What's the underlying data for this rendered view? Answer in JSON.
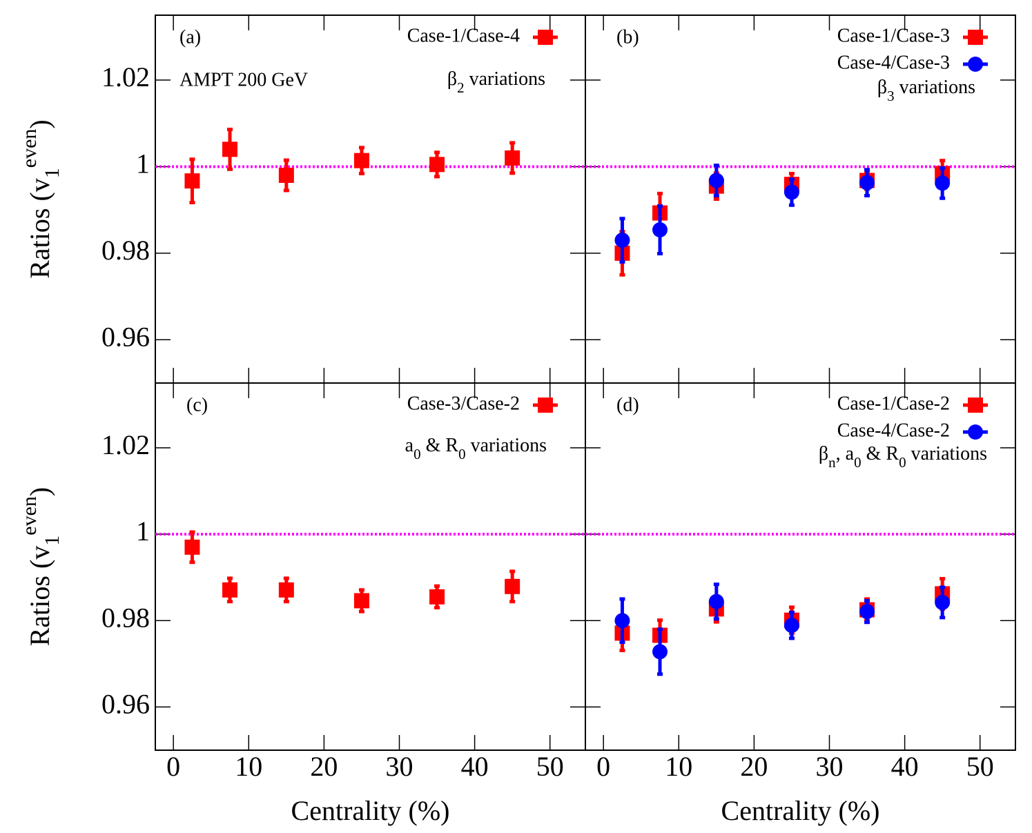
{
  "chart_data": [
    {
      "type": "errorbar",
      "panel_label": "(a)",
      "note": "AMPT 200 GeV",
      "annotation": [
        {
          "text": "β"
        },
        {
          "text": "2",
          "style": "sub"
        },
        {
          "text": " variations"
        }
      ],
      "y_label": [
        {
          "text": "Ratios (v"
        },
        {
          "text": "1",
          "style": "sub"
        },
        {
          "text": "even",
          "style": "sup"
        },
        {
          "text": ")"
        }
      ],
      "xlim": [
        -2.4,
        54.7
      ],
      "xticks": [
        0,
        10,
        20,
        30,
        40,
        50
      ],
      "xticklabels": false,
      "ylim": [
        0.95,
        1.035
      ],
      "yticks": [
        0.96,
        0.98,
        1,
        1.02
      ],
      "yticklabels": true,
      "hline": 1,
      "hline_color": "#ff00ff",
      "series": [
        {
          "name": "Case-1/Case-4",
          "color": "#ff0000",
          "marker": "square",
          "x": [
            2.5,
            7.5,
            15,
            25,
            35,
            45
          ],
          "values": [
            0.9967,
            1.004,
            0.998,
            1.0014,
            1.0005,
            1.002
          ],
          "errors": [
            0.005,
            0.0046,
            0.0035,
            0.003,
            0.0028,
            0.0035
          ]
        }
      ]
    },
    {
      "type": "errorbar",
      "panel_label": "(b)",
      "annotation": [
        {
          "text": "β"
        },
        {
          "text": "3",
          "style": "sub"
        },
        {
          "text": " variations"
        }
      ],
      "xlim": [
        -2.4,
        54.7
      ],
      "xticks": [
        0,
        10,
        20,
        30,
        40,
        50
      ],
      "xticklabels": false,
      "ylim": [
        0.95,
        1.035
      ],
      "yticks": [
        0.96,
        0.98,
        1,
        1.02
      ],
      "yticklabels": false,
      "hline": 1,
      "hline_color": "#ff00ff",
      "series": [
        {
          "name": "Case-1/Case-3",
          "color": "#ff0000",
          "marker": "square",
          "x": [
            2.5,
            7.5,
            15,
            25,
            35,
            45
          ],
          "values": [
            0.98,
            0.9893,
            0.9955,
            0.9959,
            0.9968,
            0.9984
          ],
          "errors": [
            0.005,
            0.0045,
            0.003,
            0.0025,
            0.002,
            0.003
          ]
        },
        {
          "name": "Case-4/Case-3",
          "color": "#0000ff",
          "marker": "circle",
          "x": [
            2.5,
            7.5,
            15,
            25,
            35,
            45
          ],
          "values": [
            0.983,
            0.9854,
            0.9968,
            0.9941,
            0.9963,
            0.9962
          ],
          "errors": [
            0.005,
            0.0055,
            0.0035,
            0.003,
            0.003,
            0.0035
          ]
        }
      ]
    },
    {
      "type": "errorbar",
      "panel_label": "(c)",
      "annotation": [
        {
          "text": "a"
        },
        {
          "text": "0",
          "style": "sub"
        },
        {
          "text": " &  R"
        },
        {
          "text": "0",
          "style": "sub"
        },
        {
          "text": " variations"
        }
      ],
      "y_label": [
        {
          "text": "Ratios (v"
        },
        {
          "text": "1",
          "style": "sub"
        },
        {
          "text": "even",
          "style": "sup"
        },
        {
          "text": ")"
        }
      ],
      "x_label": "Centrality (%)",
      "xlim": [
        -2.4,
        54.7
      ],
      "xticks": [
        0,
        10,
        20,
        30,
        40,
        50
      ],
      "xticklabels": true,
      "ylim": [
        0.95,
        1.035
      ],
      "yticks": [
        0.96,
        0.98,
        1,
        1.02
      ],
      "yticklabels": true,
      "hline": 1,
      "hline_color": "#ff00ff",
      "series": [
        {
          "name": "Case-3/Case-2",
          "color": "#ff0000",
          "marker": "square",
          "x": [
            2.5,
            7.5,
            15,
            25,
            35,
            45
          ],
          "values": [
            0.997,
            0.9871,
            0.9871,
            0.9846,
            0.9855,
            0.9879
          ],
          "errors": [
            0.0035,
            0.0027,
            0.0027,
            0.0025,
            0.0025,
            0.0035
          ]
        }
      ]
    },
    {
      "type": "errorbar",
      "panel_label": "(d)",
      "annotation": [
        {
          "text": "β"
        },
        {
          "text": "n",
          "style": "sub"
        },
        {
          "text": ", a"
        },
        {
          "text": "0",
          "style": "sub"
        },
        {
          "text": " & R"
        },
        {
          "text": "0",
          "style": "sub"
        },
        {
          "text": " variations"
        }
      ],
      "x_label": "Centrality (%)",
      "xlim": [
        -2.4,
        54.7
      ],
      "xticks": [
        0,
        10,
        20,
        30,
        40,
        50
      ],
      "xticklabels": true,
      "ylim": [
        0.95,
        1.035
      ],
      "yticks": [
        0.96,
        0.98,
        1,
        1.02
      ],
      "yticklabels": false,
      "hline": 1,
      "hline_color": "#ff00ff",
      "series": [
        {
          "name": "Case-1/Case-2",
          "color": "#ff0000",
          "marker": "square",
          "x": [
            2.5,
            7.5,
            15,
            25,
            35,
            45
          ],
          "values": [
            0.9771,
            0.9766,
            0.9827,
            0.9801,
            0.9825,
            0.9862
          ],
          "errors": [
            0.004,
            0.0035,
            0.003,
            0.003,
            0.0025,
            0.0035
          ]
        },
        {
          "name": "Case-4/Case-2",
          "color": "#0000ff",
          "marker": "circle",
          "x": [
            2.5,
            7.5,
            15,
            25,
            35,
            45
          ],
          "values": [
            0.98,
            0.9728,
            0.9844,
            0.9789,
            0.9821,
            0.9842
          ],
          "errors": [
            0.005,
            0.0052,
            0.004,
            0.003,
            0.0025,
            0.0035
          ]
        }
      ]
    }
  ]
}
